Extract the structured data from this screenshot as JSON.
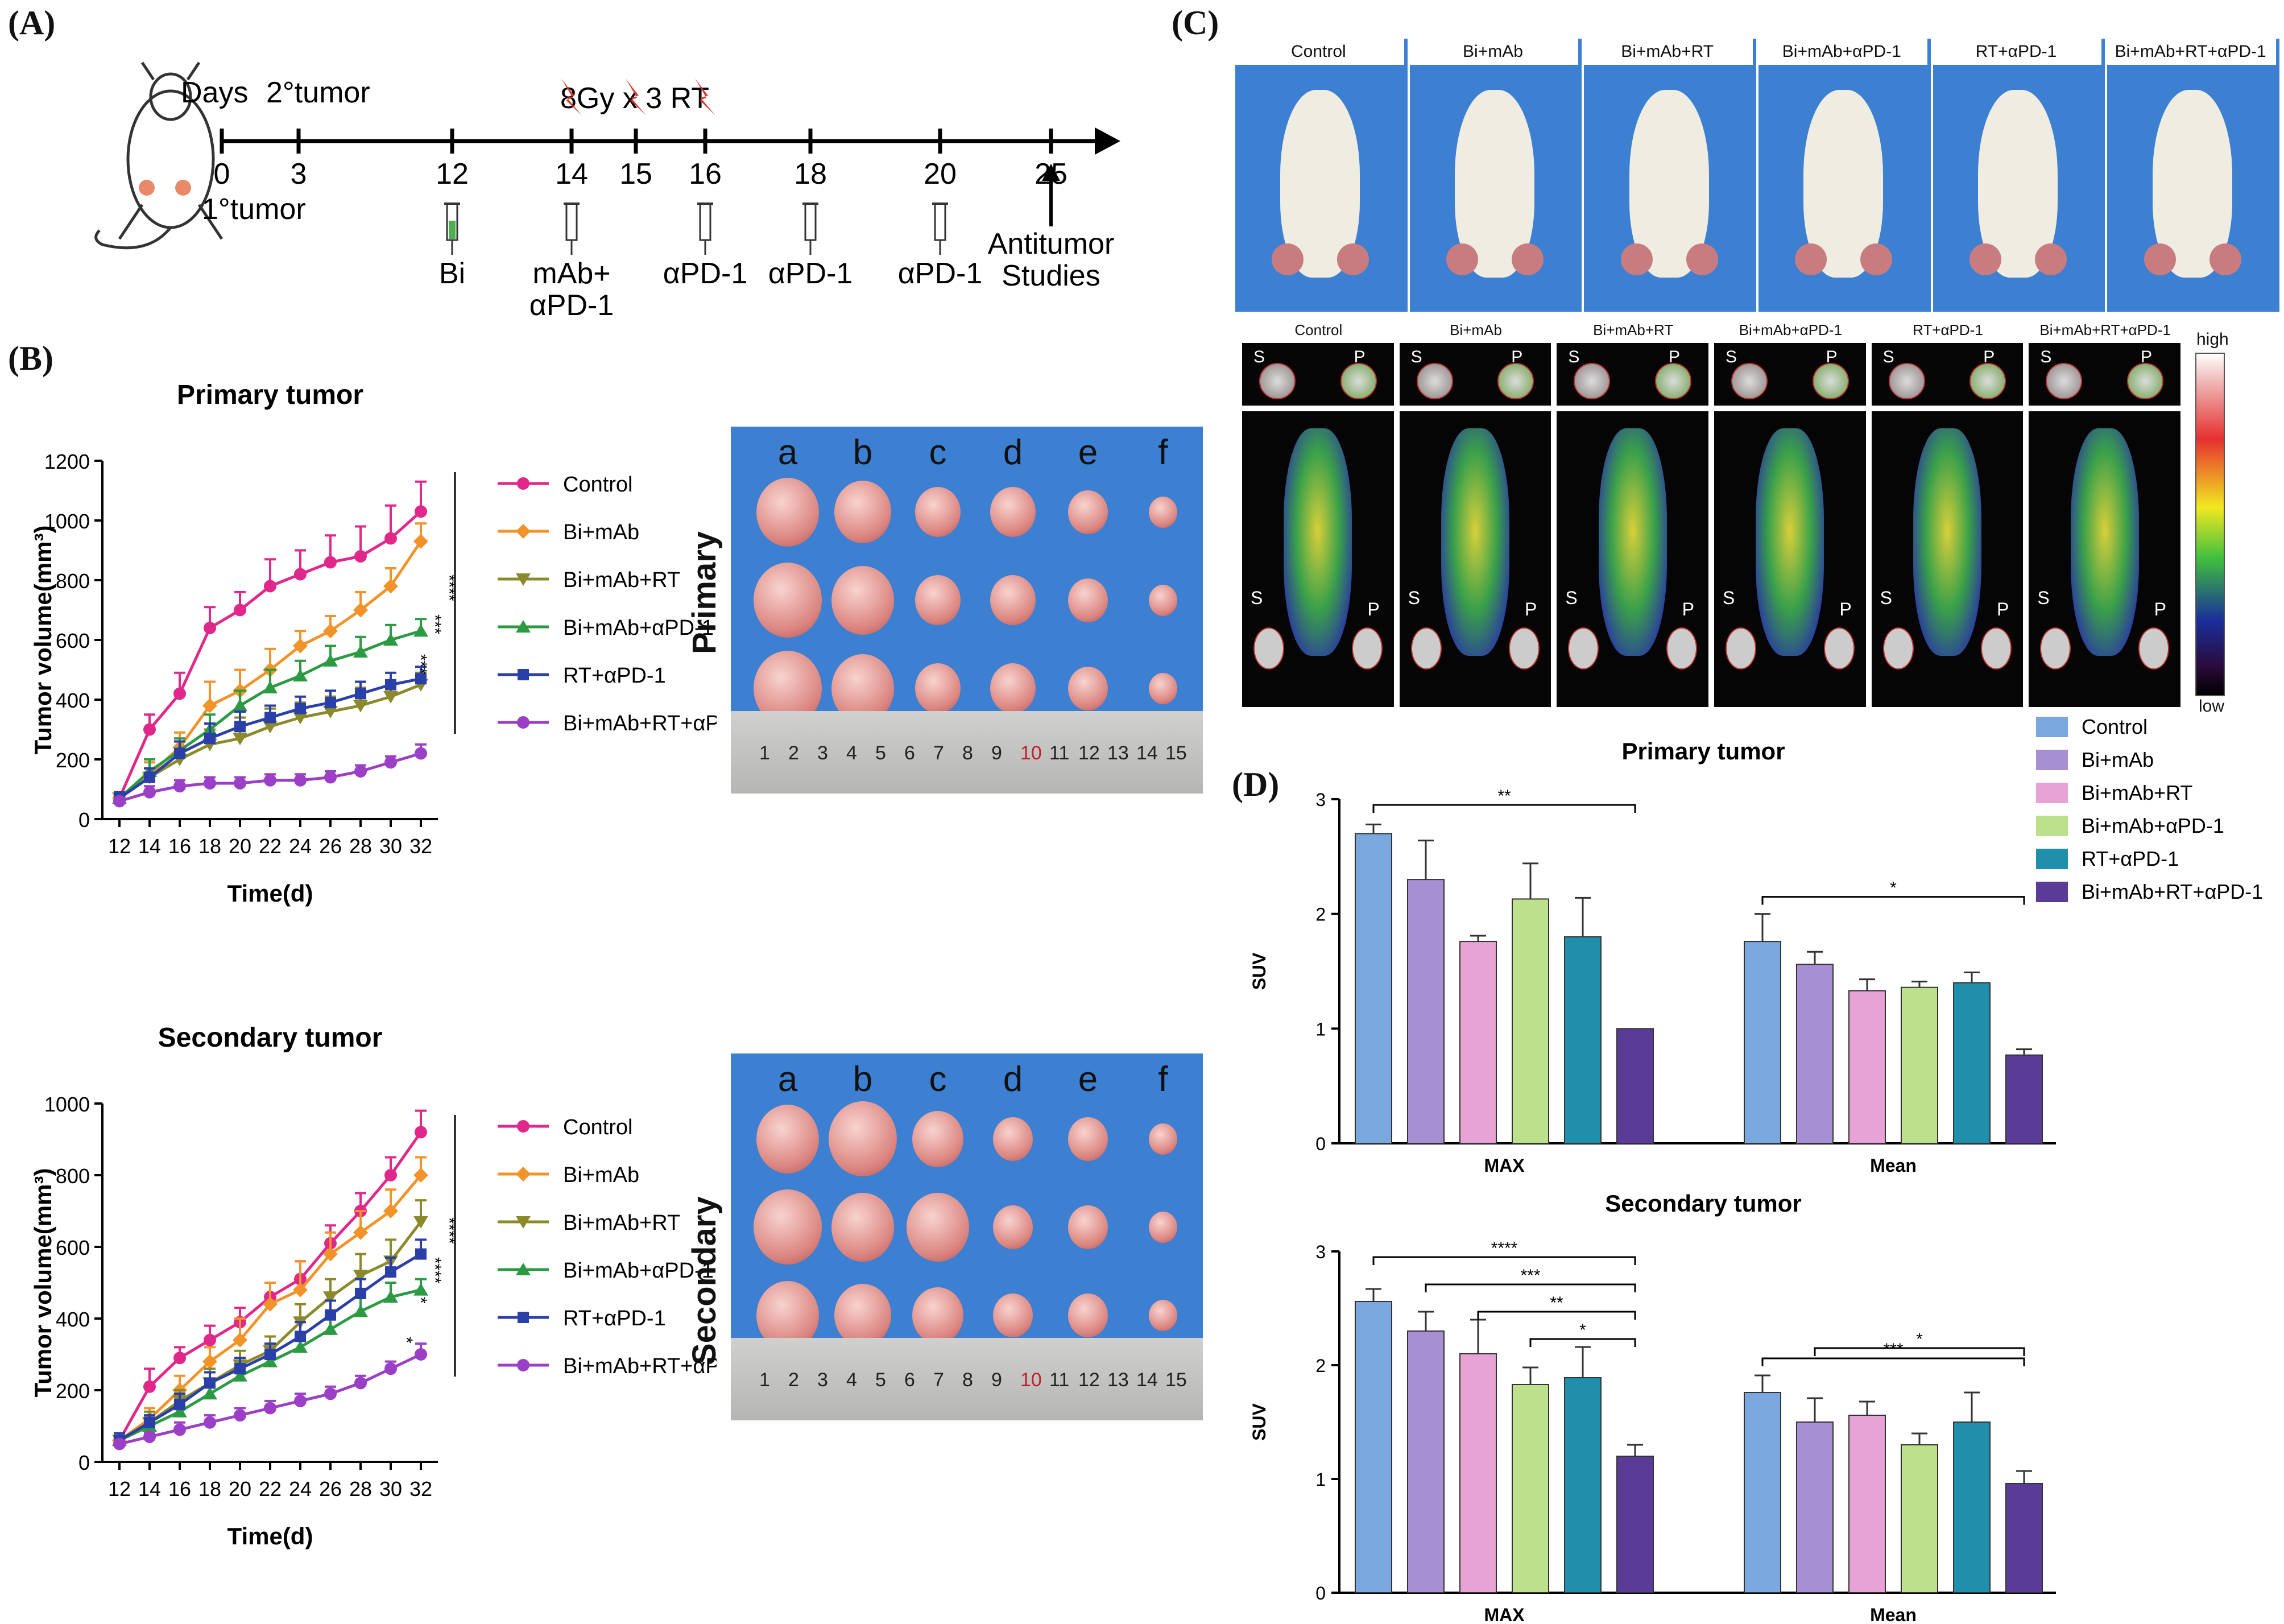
{
  "panels": {
    "A": "(A)",
    "B": "(B)",
    "C": "(C)",
    "D": "(D)"
  },
  "timeline": {
    "days_label": "Days",
    "secondary_tumor": "2°tumor",
    "primary_tumor": "1°tumor",
    "rt_label": "8Gy x 3 RT",
    "ticks": [
      "0",
      "3",
      "12",
      "14",
      "15",
      "16",
      "18",
      "20",
      "25"
    ],
    "treatments": [
      {
        "day": "12",
        "lines": [
          "Bi"
        ]
      },
      {
        "day": "14",
        "lines": [
          "mAb+",
          "αPD-1"
        ]
      },
      {
        "day": "16",
        "lines": [
          "αPD-1"
        ]
      },
      {
        "day": "18",
        "lines": [
          "αPD-1"
        ]
      },
      {
        "day": "20",
        "lines": [
          "αPD-1"
        ]
      },
      {
        "day": "25",
        "lines": [
          "Antitumor",
          "Studies"
        ]
      }
    ]
  },
  "groups": [
    "Control",
    "Bi+mAb",
    "Bi+mAb+RT",
    "Bi+mAb+αPD-1",
    "RT+αPD-1",
    "Bi+mAb+RT+αPD-1"
  ],
  "colors": {
    "line": [
      "#e0288b",
      "#f2932a",
      "#8b8a2a",
      "#2c9a43",
      "#2b3fa8",
      "#9a3fc6"
    ],
    "bar": [
      "#7aa7dd",
      "#a68fd3",
      "#e7a2d6",
      "#bde08c",
      "#1f8fab",
      "#5b3b98"
    ],
    "photo_bg": "#3d7fd1"
  },
  "photos": {
    "primary_label": "Primary",
    "secondary_label": "Secondary",
    "columns": [
      "a",
      "b",
      "c",
      "d",
      "e",
      "f"
    ],
    "ruler_numbers": [
      "1",
      "2",
      "3",
      "4",
      "5",
      "6",
      "7",
      "8",
      "9",
      "10",
      "11",
      "12",
      "13",
      "14",
      "15"
    ]
  },
  "pet": {
    "high": "high",
    "low": "low",
    "s": "S",
    "p": "P"
  },
  "chart_data": [
    {
      "type": "line",
      "title": "Primary tumor",
      "xlabel": "Time(d)",
      "ylabel": "Tumor volume(mm³)",
      "x": [
        12,
        14,
        16,
        18,
        20,
        22,
        24,
        26,
        28,
        30,
        32
      ],
      "ylim": [
        0,
        1200
      ],
      "yticks": [
        0,
        200,
        400,
        600,
        800,
        1000,
        1200
      ],
      "series": [
        {
          "name": "Control",
          "values": [
            70,
            300,
            420,
            640,
            700,
            780,
            820,
            860,
            880,
            940,
            1030
          ],
          "err": [
            20,
            50,
            70,
            70,
            60,
            90,
            80,
            90,
            100,
            110,
            100
          ]
        },
        {
          "name": "Bi+mAb",
          "values": [
            70,
            150,
            240,
            380,
            430,
            500,
            580,
            630,
            700,
            780,
            930
          ],
          "err": [
            20,
            40,
            50,
            80,
            70,
            70,
            50,
            50,
            60,
            60,
            60
          ]
        },
        {
          "name": "Bi+mAb+RT",
          "values": [
            70,
            140,
            200,
            250,
            270,
            310,
            340,
            360,
            380,
            410,
            450
          ],
          "err": [
            20,
            30,
            60,
            50,
            70,
            60,
            50,
            50,
            60,
            50,
            40
          ]
        },
        {
          "name": "Bi+mAb+αPD-1",
          "values": [
            70,
            160,
            230,
            300,
            380,
            440,
            480,
            530,
            560,
            600,
            630
          ],
          "err": [
            20,
            40,
            40,
            50,
            50,
            60,
            50,
            50,
            50,
            50,
            40
          ]
        },
        {
          "name": "RT+αPD-1",
          "values": [
            70,
            140,
            220,
            270,
            310,
            340,
            370,
            390,
            420,
            450,
            470
          ],
          "err": [
            20,
            30,
            40,
            50,
            50,
            40,
            40,
            40,
            40,
            40,
            40
          ]
        },
        {
          "name": "Bi+mAb+RT+αPD-1",
          "values": [
            60,
            90,
            110,
            120,
            120,
            130,
            130,
            140,
            160,
            190,
            220
          ],
          "err": [
            10,
            20,
            20,
            20,
            20,
            20,
            20,
            20,
            20,
            20,
            30
          ]
        }
      ],
      "significance": [
        "****",
        "***",
        "***"
      ]
    },
    {
      "type": "line",
      "title": "Secondary tumor",
      "xlabel": "Time(d)",
      "ylabel": "Tumor volume(mm³)",
      "x": [
        12,
        14,
        16,
        18,
        20,
        22,
        24,
        26,
        28,
        30,
        32
      ],
      "ylim": [
        0,
        1000
      ],
      "yticks": [
        0,
        200,
        400,
        600,
        800,
        1000
      ],
      "series": [
        {
          "name": "Control",
          "values": [
            60,
            210,
            290,
            340,
            390,
            460,
            510,
            610,
            700,
            800,
            920
          ],
          "err": [
            20,
            50,
            30,
            40,
            40,
            40,
            50,
            50,
            50,
            50,
            60
          ]
        },
        {
          "name": "Bi+mAb",
          "values": [
            60,
            120,
            200,
            280,
            340,
            440,
            480,
            580,
            640,
            700,
            800
          ],
          "err": [
            20,
            30,
            40,
            40,
            60,
            60,
            80,
            60,
            60,
            60,
            50
          ]
        },
        {
          "name": "Bi+mAb+RT",
          "values": [
            60,
            110,
            170,
            220,
            270,
            310,
            390,
            460,
            520,
            560,
            670
          ],
          "err": [
            20,
            30,
            30,
            40,
            40,
            40,
            50,
            50,
            60,
            60,
            60
          ]
        },
        {
          "name": "Bi+mAb+αPD-1",
          "values": [
            60,
            100,
            140,
            190,
            240,
            280,
            320,
            370,
            420,
            460,
            480
          ],
          "err": [
            20,
            20,
            30,
            30,
            30,
            30,
            30,
            30,
            40,
            40,
            30
          ]
        },
        {
          "name": "RT+αPD-1",
          "values": [
            60,
            110,
            160,
            220,
            260,
            300,
            350,
            410,
            470,
            530,
            580
          ],
          "err": [
            20,
            20,
            30,
            30,
            30,
            30,
            40,
            40,
            40,
            40,
            40
          ]
        },
        {
          "name": "Bi+mAb+RT+αPD-1",
          "values": [
            50,
            70,
            90,
            110,
            130,
            150,
            170,
            190,
            220,
            260,
            300
          ],
          "err": [
            10,
            10,
            20,
            20,
            20,
            20,
            20,
            20,
            20,
            20,
            30
          ]
        }
      ],
      "significance": [
        "****",
        "****",
        "*",
        "*"
      ]
    },
    {
      "type": "bar",
      "title": "Primary tumor",
      "ylabel": "SUV",
      "categories": [
        "MAX",
        "Mean"
      ],
      "ylim": [
        0,
        3
      ],
      "yticks": [
        0,
        1,
        2,
        3
      ],
      "series": [
        {
          "name": "Control",
          "values": [
            2.7,
            1.76
          ],
          "err": [
            0.08,
            0.24
          ]
        },
        {
          "name": "Bi+mAb",
          "values": [
            2.3,
            1.56
          ],
          "err": [
            0.34,
            0.11
          ]
        },
        {
          "name": "Bi+mAb+RT",
          "values": [
            1.76,
            1.33
          ],
          "err": [
            0.05,
            0.1
          ]
        },
        {
          "name": "Bi+mAb+αPD-1",
          "values": [
            2.13,
            1.36
          ],
          "err": [
            0.31,
            0.05
          ]
        },
        {
          "name": "RT+αPD-1",
          "values": [
            1.8,
            1.4
          ],
          "err": [
            0.34,
            0.09
          ]
        },
        {
          "name": "Bi+mAb+RT+αPD-1",
          "values": [
            1.0,
            0.77
          ],
          "err": [
            0.0,
            0.05
          ]
        }
      ],
      "significance": [
        {
          "cat": 0,
          "from": 0,
          "to": 5,
          "label": "**"
        },
        {
          "cat": 1,
          "from": 0,
          "to": 5,
          "label": "*"
        }
      ]
    },
    {
      "type": "bar",
      "title": "Secondary tumor",
      "ylabel": "SUV",
      "categories": [
        "MAX",
        "Mean"
      ],
      "ylim": [
        0,
        3
      ],
      "yticks": [
        0,
        1,
        2,
        3
      ],
      "series": [
        {
          "name": "Control",
          "values": [
            2.56,
            1.76
          ],
          "err": [
            0.11,
            0.15
          ]
        },
        {
          "name": "Bi+mAb",
          "values": [
            2.3,
            1.5
          ],
          "err": [
            0.17,
            0.21
          ]
        },
        {
          "name": "Bi+mAb+RT",
          "values": [
            2.1,
            1.56
          ],
          "err": [
            0.3,
            0.12
          ]
        },
        {
          "name": "Bi+mAb+αPD-1",
          "values": [
            1.83,
            1.3
          ],
          "err": [
            0.15,
            0.1
          ]
        },
        {
          "name": "RT+αPD-1",
          "values": [
            1.89,
            1.5
          ],
          "err": [
            0.27,
            0.26
          ]
        },
        {
          "name": "Bi+mAb+RT+αPD-1",
          "values": [
            1.2,
            0.96
          ],
          "err": [
            0.1,
            0.11
          ]
        }
      ],
      "significance": [
        {
          "cat": 0,
          "from": 0,
          "to": 5,
          "label": "****"
        },
        {
          "cat": 0,
          "from": 1,
          "to": 5,
          "label": "***"
        },
        {
          "cat": 0,
          "from": 2,
          "to": 5,
          "label": "**"
        },
        {
          "cat": 0,
          "from": 3,
          "to": 5,
          "label": "*"
        },
        {
          "cat": 1,
          "from": 0,
          "to": 5,
          "label": "***"
        },
        {
          "cat": 1,
          "from": 1,
          "to": 5,
          "label": "*"
        }
      ]
    }
  ]
}
